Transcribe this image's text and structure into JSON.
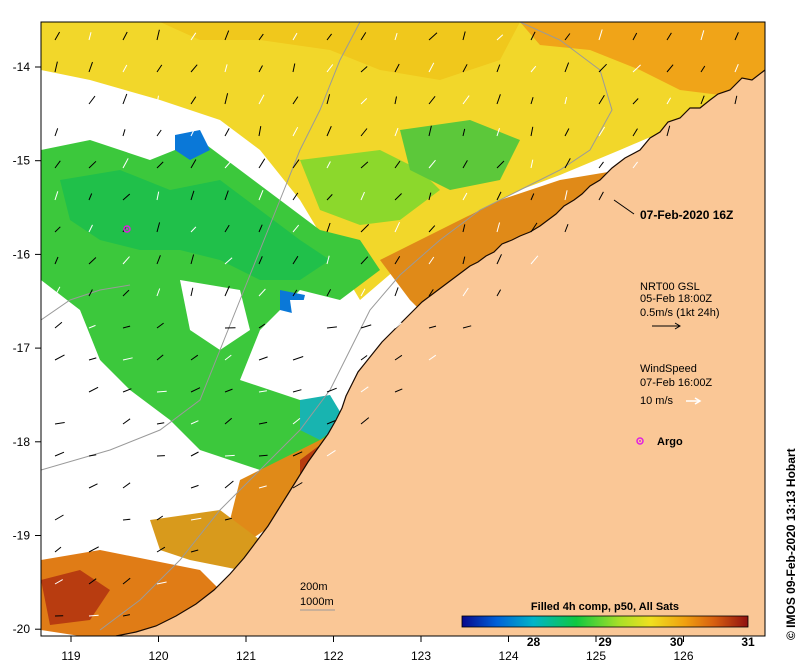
{
  "map": {
    "x_ticks": [
      "119",
      "120",
      "121",
      "122",
      "123",
      "124",
      "125",
      "126"
    ],
    "y_ticks": [
      "-14",
      "-15",
      "-16",
      "-17",
      "-18",
      "-19",
      "-20"
    ],
    "date_label": "07-Feb-2020 16Z",
    "current_legend": {
      "line1": "NRT00 GSL",
      "line2": "05-Feb 18:00Z",
      "line3": "0.5m/s (1kt 24h)"
    },
    "wind_legend": {
      "line1": "WindSpeed",
      "line2": "07-Feb 16:00Z",
      "line3": "10 m/s"
    },
    "argo_label": "Argo",
    "contours": {
      "c200": "200m",
      "c1000": "1000m"
    },
    "colorbar": {
      "title": "Filled 4h comp, p50, All Sats",
      "ticks": [
        "28",
        "29",
        "30",
        "31"
      ],
      "range": [
        27,
        31
      ],
      "stops": [
        "#08088c",
        "#0060d8",
        "#00b4c8",
        "#10c840",
        "#a8e028",
        "#f0e020",
        "#f0a010",
        "#d86010",
        "#901010"
      ]
    },
    "credit": "© IMOS 09-Feb-2020 13:13 Hobart",
    "colors": {
      "land": "#fac796",
      "frame": "#000000",
      "argo": "#e020e0"
    }
  }
}
